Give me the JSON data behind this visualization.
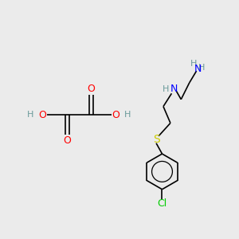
{
  "bg_color": "#ebebeb",
  "atom_colors": {
    "C": "#000000",
    "H": "#6b9b9b",
    "N": "#0000ff",
    "O": "#ff0000",
    "S": "#cccc00",
    "Cl": "#00cc00"
  },
  "bond_color": "#000000",
  "bond_width": 1.2,
  "font_size": 8,
  "figsize": [
    3.0,
    3.0
  ],
  "dpi": 100,
  "xlim": [
    0,
    10
  ],
  "ylim": [
    0,
    10
  ]
}
